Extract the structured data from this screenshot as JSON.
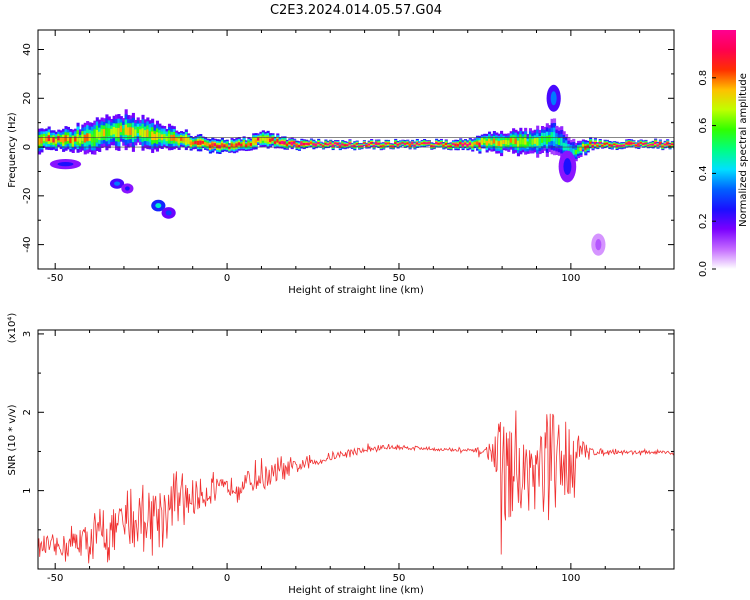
{
  "title": "C2E3.2024.014.05.57.G04",
  "chart_data": [
    {
      "type": "heatmap",
      "xlabel": "Height of straight line (km)",
      "ylabel": "Frequency (Hz)",
      "xlim": [
        -55,
        130
      ],
      "ylim": [
        -50,
        48
      ],
      "xticks": [
        -50,
        0,
        50,
        100
      ],
      "yticks": [
        -40,
        -20,
        0,
        20,
        40
      ],
      "colorbar": {
        "label": "Normalized spectral amplitude",
        "range": [
          0,
          1
        ],
        "ticks": [
          "0.0",
          "0.2",
          "0.4",
          "0.6",
          "0.8"
        ],
        "colors": [
          "#ffffff",
          "#c46bff",
          "#7a00ff",
          "#1a10ff",
          "#0060ff",
          "#00e0ff",
          "#00ff80",
          "#30ff00",
          "#c0ff00",
          "#ffc000",
          "#ff3000",
          "#ff0050",
          "#ff0090"
        ]
      },
      "ridge": {
        "x": [
          -55,
          -50,
          -45,
          -40,
          -35,
          -30,
          -25,
          -20,
          -15,
          -10,
          -5,
          0,
          5,
          10,
          20,
          30,
          40,
          50,
          60,
          70,
          75,
          80,
          85,
          90,
          95,
          100,
          105,
          110,
          120,
          130
        ],
        "y": [
          3,
          3,
          3,
          4,
          6,
          7,
          6,
          4,
          3,
          2,
          1,
          0,
          1,
          3,
          1,
          1,
          1,
          1,
          1,
          1,
          2,
          2,
          2,
          2,
          4,
          -2,
          1,
          1,
          1,
          1
        ],
        "spread": [
          3.5,
          3.5,
          4,
          4.5,
          5,
          5.5,
          5,
          4.5,
          3.5,
          2.5,
          2,
          2,
          2.2,
          2.5,
          1.5,
          1.2,
          1.2,
          1.2,
          1.2,
          1.5,
          3,
          3.5,
          3.5,
          4.5,
          5,
          4,
          1.5,
          1.2,
          1.2,
          1.2
        ],
        "amp": [
          0.75,
          0.8,
          0.75,
          0.7,
          0.65,
          0.7,
          0.65,
          0.7,
          0.75,
          0.85,
          0.9,
          0.85,
          0.85,
          0.8,
          0.95,
          0.95,
          0.95,
          0.95,
          0.95,
          0.9,
          0.75,
          0.7,
          0.7,
          0.6,
          0.5,
          0.45,
          0.85,
          0.95,
          0.95,
          0.95
        ]
      },
      "blobs": [
        {
          "x": -32,
          "y": -15,
          "rx": 1.5,
          "ry": 1.5,
          "amp": 0.35
        },
        {
          "x": -29,
          "y": -17,
          "rx": 1.2,
          "ry": 1.5,
          "amp": 0.25
        },
        {
          "x": -20,
          "y": -24,
          "rx": 1.5,
          "ry": 1.8,
          "amp": 0.45
        },
        {
          "x": -17,
          "y": -27,
          "rx": 1.5,
          "ry": 1.8,
          "amp": 0.3
        },
        {
          "x": 95,
          "y": 20,
          "rx": 1.5,
          "ry": 5,
          "amp": 0.35
        },
        {
          "x": 99,
          "y": -8,
          "rx": 2,
          "ry": 6,
          "amp": 0.25
        },
        {
          "x": 108,
          "y": -40,
          "rx": 1.5,
          "ry": 4,
          "amp": 0.1
        },
        {
          "x": -47,
          "y": -7,
          "rx": 4,
          "ry": 1.5,
          "amp": 0.25
        }
      ]
    },
    {
      "type": "line",
      "xlabel": "Height of straight line (km)",
      "ylabel": "SNR (10 * v/v)",
      "yscale_note": "(x10⁴)",
      "xlim": [
        -55,
        130
      ],
      "ylim": [
        0,
        3.05
      ],
      "xticks": [
        -50,
        0,
        50,
        100
      ],
      "yticks": [
        1,
        2,
        3
      ],
      "color": "#f03030",
      "envelope": {
        "x": [
          -55,
          -50,
          -45,
          -40,
          -35,
          -30,
          -25,
          -20,
          -15,
          -10,
          -5,
          0,
          5,
          10,
          15,
          20,
          25,
          30,
          35,
          40,
          45,
          50,
          55,
          60,
          65,
          70,
          75,
          78,
          80,
          85,
          90,
          95,
          100,
          102,
          105,
          110,
          120,
          130
        ],
        "base": [
          0.28,
          0.28,
          0.32,
          0.38,
          0.46,
          0.55,
          0.65,
          0.75,
          0.83,
          0.91,
          0.99,
          1.04,
          1.1,
          1.16,
          1.23,
          1.3,
          1.36,
          1.42,
          1.48,
          1.52,
          1.55,
          1.55,
          1.55,
          1.53,
          1.52,
          1.51,
          1.5,
          1.5,
          1.3,
          1.2,
          1.25,
          1.3,
          1.45,
          1.52,
          1.5,
          1.5,
          1.49,
          1.48
        ],
        "amp": [
          0.12,
          0.2,
          0.3,
          0.38,
          0.45,
          0.55,
          0.55,
          0.55,
          0.5,
          0.45,
          0.3,
          0.2,
          0.25,
          0.28,
          0.25,
          0.15,
          0.1,
          0.07,
          0.06,
          0.1,
          0.06,
          0.05,
          0.04,
          0.04,
          0.03,
          0.05,
          0.1,
          0.4,
          1.3,
          0.8,
          1.0,
          1.4,
          0.9,
          0.4,
          0.12,
          0.05,
          0.04,
          0.04
        ]
      }
    }
  ]
}
